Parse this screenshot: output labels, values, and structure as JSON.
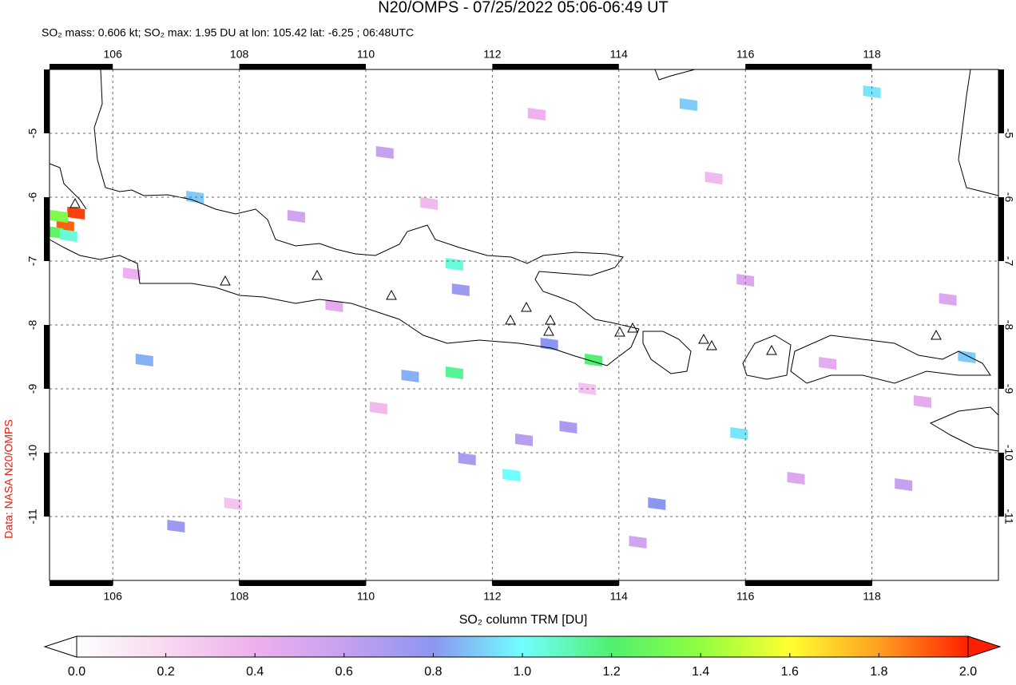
{
  "chart_data": {
    "type": "map",
    "title": "N20/OMPS - 07/25/2022 05:06-06:49 UT",
    "subtitle": "SO₂ mass: 0.606 kt; SO₂ max: 1.95 DU at lon: 105.42 lat: -6.25 ; 06:48UTC",
    "credit": "Data: NASA N20/OMPS",
    "colorbar_label": "SO₂ column TRM [DU]",
    "xlim": [
      105,
      120
    ],
    "ylim": [
      -12,
      -4
    ],
    "xticks": [
      106,
      108,
      110,
      112,
      114,
      116,
      118
    ],
    "yticks": [
      -5,
      -6,
      -7,
      -8,
      -9,
      -10,
      -11
    ],
    "grid": true,
    "clim": [
      0,
      2
    ],
    "cticks": [
      {
        "value": 0,
        "label": "0.0"
      },
      {
        "value": 0.2,
        "label": "0.2"
      },
      {
        "value": 0.4,
        "label": "0.4"
      },
      {
        "value": 0.6,
        "label": "0.6"
      },
      {
        "value": 0.8,
        "label": "0.8"
      },
      {
        "value": 1.0,
        "label": "1.0"
      },
      {
        "value": 1.2,
        "label": "1.2"
      },
      {
        "value": 1.4,
        "label": "1.4"
      },
      {
        "value": 1.6,
        "label": "1.6"
      },
      {
        "value": 1.8,
        "label": "1.8"
      },
      {
        "value": 2.0,
        "label": "2.0"
      }
    ],
    "colorscale": [
      "#ffffff",
      "#f8d8f0",
      "#eeb0ee",
      "#c7a0f0",
      "#8c96f0",
      "#70ffff",
      "#50f070",
      "#90ff40",
      "#ffff30",
      "#ffa020",
      "#ff2000"
    ],
    "pixels": {
      "lon": [
        105.42,
        105.25,
        105.15,
        105.08,
        105.3,
        111.4,
        111.4,
        113.6,
        112.3,
        115.9,
        114.6,
        110.7,
        111.5,
        112.9,
        107.3,
        119.5,
        118.0,
        115.1,
        106.5,
        107.0,
        108.9,
        110.3,
        111.6,
        112.5,
        113.2,
        116.0,
        117.3,
        118.5,
        106.3,
        109.5,
        110.2,
        112.7,
        114.3,
        116.8,
        118.8,
        107.9,
        111.0,
        113.5,
        115.5,
        119.2
      ],
      "lat": [
        -6.25,
        -6.45,
        -6.3,
        -6.55,
        -6.6,
        -7.05,
        -8.75,
        -8.55,
        -10.35,
        -9.7,
        -10.8,
        -8.8,
        -7.45,
        -8.3,
        -6.0,
        -8.5,
        -4.35,
        -4.55,
        -8.55,
        -11.15,
        -6.3,
        -5.3,
        -10.1,
        -9.8,
        -9.6,
        -7.3,
        -8.6,
        -10.5,
        -7.2,
        -7.7,
        -9.3,
        -4.7,
        -11.4,
        -10.4,
        -9.2,
        -10.8,
        -6.1,
        -9.0,
        -5.7,
        -7.6
      ],
      "values": [
        1.95,
        1.9,
        1.35,
        1.25,
        1.05,
        1.05,
        1.15,
        1.2,
        1.0,
        0.95,
        0.8,
        0.85,
        0.75,
        0.8,
        0.9,
        0.9,
        0.95,
        0.9,
        0.85,
        0.75,
        0.55,
        0.6,
        0.7,
        0.65,
        0.7,
        0.5,
        0.45,
        0.6,
        0.4,
        0.45,
        0.35,
        0.4,
        0.55,
        0.5,
        0.45,
        0.3,
        0.35,
        0.3,
        0.35,
        0.5
      ]
    }
  }
}
